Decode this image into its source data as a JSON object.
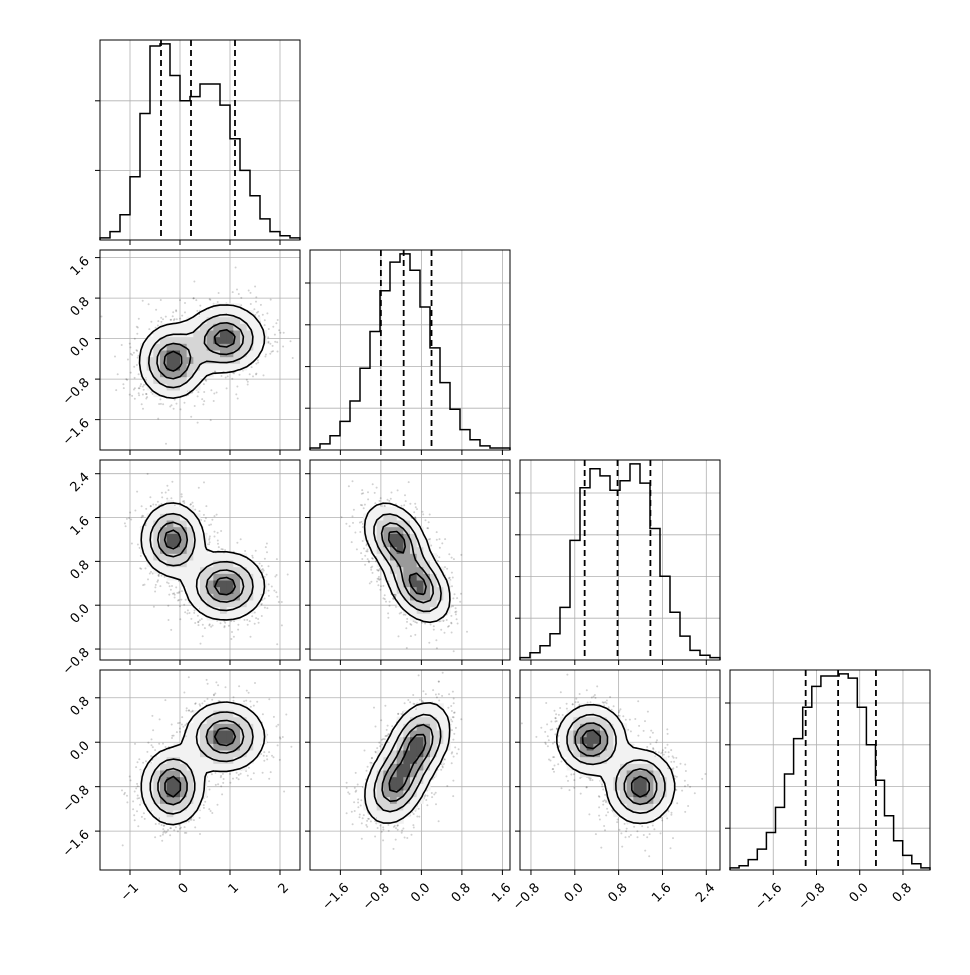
{
  "chart_data": {
    "type": "corner",
    "grid": true,
    "variables": [
      {
        "index": 0,
        "quantiles": [
          -0.38,
          0.22,
          1.1
        ]
      },
      {
        "index": 1,
        "quantiles": [
          -0.8,
          -0.35,
          0.2
        ]
      },
      {
        "index": 2,
        "quantiles": [
          0.18,
          0.78,
          1.38
        ]
      },
      {
        "index": 3,
        "quantiles": [
          -1.0,
          -0.4,
          0.3
        ]
      }
    ],
    "diagonal_histograms": [
      {
        "index": 0,
        "range": [
          -1.6,
          2.4
        ],
        "counts": [
          1,
          4,
          12,
          30,
          60,
          92,
          93,
          78,
          66,
          68,
          74,
          74,
          64,
          48,
          33,
          21,
          10,
          4,
          2,
          1
        ]
      },
      {
        "index": 1,
        "range": [
          -2.2,
          1.75
        ],
        "counts": [
          1,
          3,
          7,
          14,
          24,
          40,
          58,
          78,
          92,
          96,
          88,
          70,
          50,
          33,
          20,
          10,
          5,
          2,
          1,
          1
        ]
      },
      {
        "index": 2,
        "range": [
          -0.8,
          2.6
        ],
        "counts": [
          1,
          3,
          6,
          11,
          22,
          50,
          72,
          80,
          77,
          71,
          75,
          82,
          74,
          55,
          35,
          20,
          10,
          4,
          2,
          1
        ]
      },
      {
        "index": 3,
        "range": [
          -2.4,
          1.3
        ],
        "counts": [
          1,
          2,
          5,
          10,
          18,
          30,
          46,
          63,
          78,
          88,
          93,
          93,
          94,
          92,
          78,
          60,
          43,
          26,
          14,
          7,
          3,
          1
        ]
      }
    ],
    "diagonal_yticks": [
      {
        "index": 0,
        "ticks": [
          0.348,
          0.696
        ]
      },
      {
        "index": 1,
        "ticks": [
          0.209,
          0.417,
          0.626,
          0.835
        ]
      },
      {
        "index": 2,
        "ticks": [
          0.209,
          0.417,
          0.626,
          0.835
        ]
      },
      {
        "index": 3,
        "ticks": [
          0.209,
          0.417,
          0.626,
          0.835
        ]
      }
    ],
    "axes": [
      {
        "index": 0,
        "range": [
          -1.6,
          2.4
        ],
        "ticks": [
          -1,
          0,
          1,
          2
        ],
        "tick_labels": [
          "−1",
          "0",
          "1",
          "2"
        ]
      },
      {
        "index": 1,
        "range": [
          -2.2,
          1.75
        ],
        "ticks": [
          -1.6,
          -0.8,
          0.0,
          0.8,
          1.6
        ],
        "tick_labels": [
          "−1.6",
          "−0.8",
          "0.0",
          "0.8",
          "1.6"
        ]
      },
      {
        "index": 2,
        "range": [
          -1.0,
          2.65
        ],
        "ticks": [
          -0.8,
          0.0,
          0.8,
          1.6,
          2.4
        ],
        "tick_labels": [
          "−0.8",
          "0.0",
          "0.8",
          "1.6",
          "2.4"
        ]
      },
      {
        "index": 3,
        "range": [
          -2.3,
          1.3
        ],
        "ticks": [
          -1.6,
          -0.8,
          0.0,
          0.8
        ],
        "tick_labels": [
          "−1.6",
          "−0.8",
          "0.0",
          "0.8"
        ]
      }
    ],
    "diag_x_ranges": [
      {
        "index": 2,
        "range": [
          -1.0,
          2.65
        ]
      },
      {
        "index": 3,
        "range": [
          -2.4,
          1.3
        ]
      }
    ],
    "bottom_x_tick_labels": [
      {
        "index": 0,
        "ticks": [
          -1,
          0,
          1,
          2
        ],
        "tick_labels": [
          "−1",
          "0",
          "1",
          "2"
        ]
      },
      {
        "index": 1,
        "ticks": [
          -1.6,
          -0.8,
          0.0,
          0.8,
          1.6
        ],
        "tick_labels": [
          "−1.6",
          "−0.8",
          "0.0",
          "0.8",
          "1.6"
        ]
      },
      {
        "index": 2,
        "ticks": [
          -0.8,
          0.0,
          0.8,
          1.6,
          2.4
        ],
        "tick_labels": [
          "−0.8",
          "0.0",
          "0.8",
          "1.6",
          "2.4"
        ]
      },
      {
        "index": 3,
        "ticks": [
          -1.6,
          -0.8,
          0.0,
          0.8
        ],
        "tick_labels": [
          "−1.6",
          "−0.8",
          "0.0",
          "0.8"
        ]
      }
    ],
    "left_y_tick_labels": [
      {
        "index": 1,
        "ticks": [
          -1.6,
          -0.8,
          0.0,
          0.8,
          1.6
        ],
        "tick_labels": [
          "−1.6",
          "−0.8",
          "0.0",
          "0.8",
          "1.6"
        ]
      },
      {
        "index": 2,
        "ticks": [
          -0.8,
          0.0,
          0.8,
          1.6,
          2.4
        ],
        "tick_labels": [
          "−0.8",
          "0.0",
          "0.8",
          "1.6",
          "2.4"
        ]
      },
      {
        "index": 3,
        "ticks": [
          -1.6,
          -0.8,
          0.0,
          0.8
        ],
        "tick_labels": [
          "−1.6",
          "−0.8",
          "0.0",
          "0.8"
        ]
      }
    ],
    "pairs": [
      {
        "row": 1,
        "col": 0,
        "correlation": 0.0,
        "components": [
          {
            "weight": 0.5,
            "mean": [
              -0.15,
              -0.45
            ],
            "sd": [
              0.32,
              0.35
            ]
          },
          {
            "weight": 0.5,
            "mean": [
              0.9,
              0.0
            ],
            "sd": [
              0.38,
              0.32
            ]
          }
        ]
      },
      {
        "row": 2,
        "col": 0,
        "components": [
          {
            "weight": 0.5,
            "mean": [
              -0.15,
              1.2
            ],
            "sd": [
              0.3,
              0.32
            ]
          },
          {
            "weight": 0.5,
            "mean": [
              0.9,
              0.35
            ],
            "sd": [
              0.38,
              0.3
            ]
          }
        ]
      },
      {
        "row": 2,
        "col": 1,
        "components": [
          {
            "weight": 0.5,
            "mean": [
              -0.5,
              1.2
            ],
            "sd": [
              0.3,
              0.32
            ],
            "rho": -0.35
          },
          {
            "weight": 0.5,
            "mean": [
              -0.05,
              0.35
            ],
            "sd": [
              0.3,
              0.32
            ],
            "rho": -0.35
          }
        ]
      },
      {
        "row": 3,
        "col": 0,
        "components": [
          {
            "weight": 0.5,
            "mean": [
              -0.15,
              -0.8
            ],
            "sd": [
              0.3,
              0.33
            ]
          },
          {
            "weight": 0.5,
            "mean": [
              0.9,
              0.1
            ],
            "sd": [
              0.38,
              0.3
            ]
          }
        ]
      },
      {
        "row": 3,
        "col": 1,
        "components": [
          {
            "weight": 0.5,
            "mean": [
              -0.5,
              -0.75
            ],
            "sd": [
              0.3,
              0.35
            ],
            "rho": 0.3
          },
          {
            "weight": 0.5,
            "mean": [
              -0.05,
              0.0
            ],
            "sd": [
              0.3,
              0.35
            ],
            "rho": 0.3
          }
        ]
      },
      {
        "row": 3,
        "col": 2,
        "components": [
          {
            "weight": 0.5,
            "mean": [
              0.3,
              0.05
            ],
            "sd": [
              0.3,
              0.3
            ]
          },
          {
            "weight": 0.5,
            "mean": [
              1.2,
              -0.8
            ],
            "sd": [
              0.3,
              0.32
            ]
          }
        ]
      }
    ],
    "contour_levels": [
      0.12,
      0.34,
      0.62,
      0.86
    ],
    "colors": {
      "line": "#000000",
      "density": "#000000",
      "grid": "#b0b0b0",
      "background": "#ffffff"
    }
  }
}
